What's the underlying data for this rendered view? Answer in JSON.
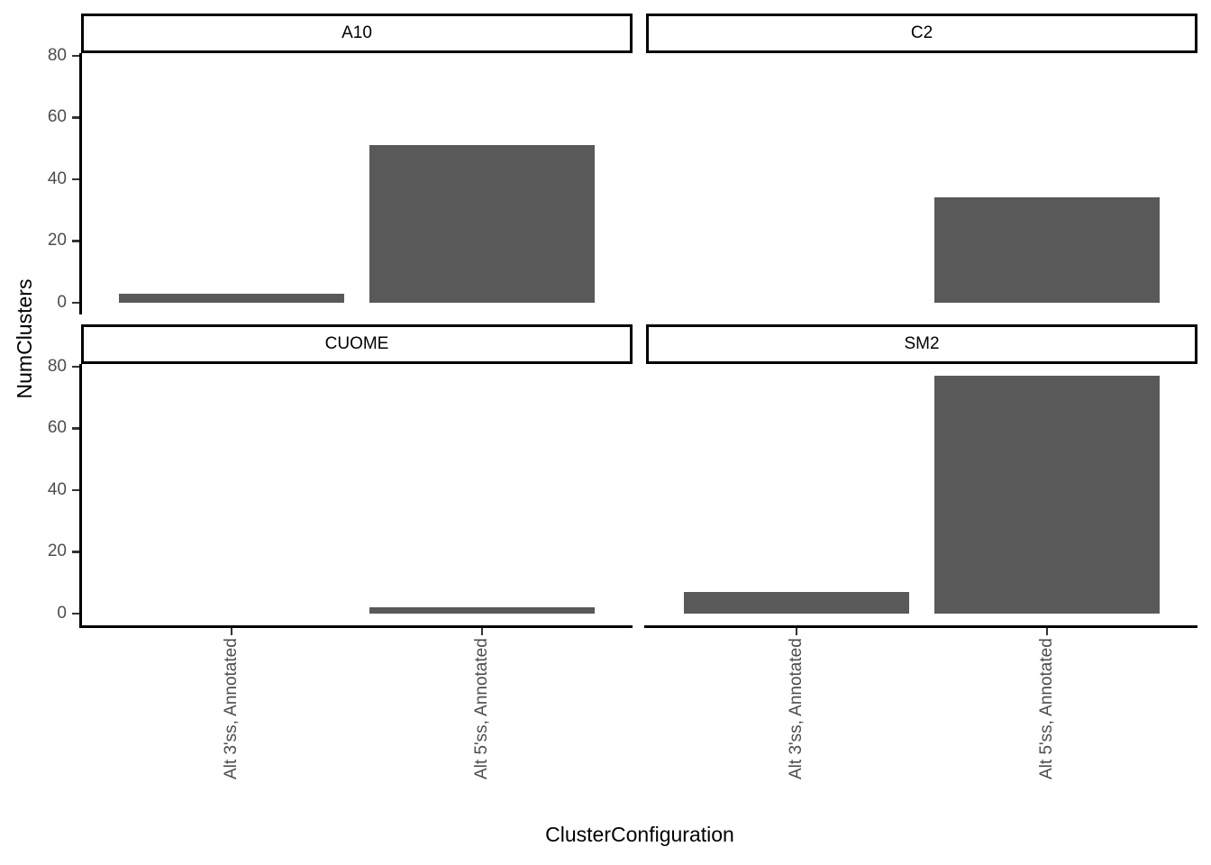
{
  "chart_data": {
    "type": "bar",
    "title": "",
    "xlabel": "ClusterConfiguration",
    "ylabel": "NumClusters",
    "categories": [
      "Alt 3'ss, Annotated",
      "Alt 5'ss, Annotated"
    ],
    "facets": [
      {
        "label": "A10",
        "values": [
          3,
          51
        ]
      },
      {
        "label": "C2",
        "values": [
          0,
          34
        ]
      },
      {
        "label": "CUOME",
        "values": [
          0,
          2
        ]
      },
      {
        "label": "SM2",
        "values": [
          7,
          77
        ]
      }
    ],
    "y_ticks": [
      0,
      20,
      40,
      60,
      80
    ],
    "ylim": [
      -3.85,
      80.85
    ],
    "x_range": [
      0.4,
      2.6
    ],
    "bar_width_fraction": 0.9,
    "grid": false,
    "legend": "none",
    "colors": {
      "bar": "#595959",
      "axis_text": "#4d4d4d",
      "axis_line": "#000000",
      "tick_mark": "#333333",
      "strip_border": "#000000",
      "strip_bg": "#ffffff",
      "background": "#ffffff"
    }
  }
}
